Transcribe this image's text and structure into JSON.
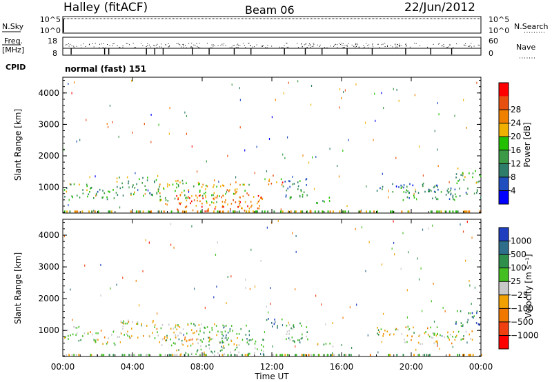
{
  "header": {
    "station": "Halley (fitACF)",
    "beam": "Beam 06",
    "date": "22/Jun/2012"
  },
  "panels": {
    "nsky": {
      "label": "N.Sky",
      "tick_top": "10^5",
      "tick_bottom": "10^0",
      "right_label": "N.Search",
      "right_tick_top": "10^5",
      "right_tick_bottom": "10^0"
    },
    "freq": {
      "label_line1": "Freq.",
      "label_line2": "[MHz]",
      "tick_top": "18",
      "tick_bottom": "8",
      "right_label": "Nave",
      "right_tick_top": "60",
      "right_tick_bottom": "0"
    },
    "cpid": {
      "label": "CPID",
      "value": "normal (fast) 151"
    }
  },
  "chart_data": [
    {
      "type": "heatmap",
      "name": "power",
      "ylabel": "Slant Range [km]",
      "ylim": [
        180,
        4500
      ],
      "yticks": [
        "1000",
        "2000",
        "3000",
        "4000"
      ],
      "colorbar": {
        "label": "Power [dB]",
        "ticks": [
          "4",
          "8",
          "12",
          "16",
          "20",
          "24",
          "28"
        ],
        "colors": [
          "#0000ff",
          "#1f4fbf",
          "#2e7d6a",
          "#3c9a46",
          "#22c000",
          "#f0b000",
          "#f08000",
          "#e85010",
          "#ff0000"
        ]
      },
      "bands": [
        {
          "t0": 0.0,
          "t1": 1.5,
          "r0": 700,
          "r1": 1150,
          "v": 0.45
        },
        {
          "t0": 1.5,
          "t1": 3.0,
          "r0": 600,
          "r1": 1050,
          "v": 0.35
        },
        {
          "t0": 3.0,
          "t1": 5.5,
          "r0": 750,
          "r1": 1350,
          "v": 0.4
        },
        {
          "t0": 5.5,
          "t1": 9.0,
          "r0": 500,
          "r1": 1250,
          "v": 0.55
        },
        {
          "t0": 6.5,
          "t1": 11.5,
          "r0": 250,
          "r1": 800,
          "v": 0.8
        },
        {
          "t0": 9.0,
          "t1": 10.8,
          "r0": 700,
          "r1": 1200,
          "v": 0.65
        },
        {
          "t0": 11.6,
          "t1": 12.6,
          "r0": 1100,
          "r1": 1400,
          "v": 0.75
        },
        {
          "t0": 12.6,
          "t1": 14.2,
          "r0": 650,
          "r1": 1300,
          "v": 0.3
        },
        {
          "t0": 14.5,
          "t1": 15.5,
          "r0": 500,
          "r1": 700,
          "v": 0.35
        },
        {
          "t0": 18.0,
          "t1": 21.5,
          "r0": 850,
          "r1": 1150,
          "v": 0.25
        },
        {
          "t0": 19.5,
          "t1": 22.5,
          "r0": 600,
          "r1": 950,
          "v": 0.35
        },
        {
          "t0": 22.5,
          "t1": 24.0,
          "r0": 1150,
          "r1": 1650,
          "v": 0.4
        },
        {
          "t0": 22.0,
          "t1": 24.0,
          "r0": 700,
          "r1": 1000,
          "v": 0.3
        }
      ]
    },
    {
      "type": "heatmap",
      "name": "velocity",
      "ylabel": "Slant Range [km]",
      "xlabel": "Time UT",
      "ylim": [
        180,
        4500
      ],
      "yticks": [
        "1000",
        "2000",
        "3000",
        "4000"
      ],
      "xticks": [
        "00:00",
        "04:00",
        "08:00",
        "12:00",
        "16:00",
        "20:00",
        "00:00"
      ],
      "colorbar": {
        "label": "Velocity [m s⁻¹]",
        "ticks": [
          "1000",
          "500",
          "100",
          "25",
          "−25",
          "−100",
          "−500",
          "−1000"
        ],
        "colors": [
          "#1f3fbf",
          "#2e6e8a",
          "#2e8f4a",
          "#44bf22",
          "#c8c8c8",
          "#f0a000",
          "#f07800",
          "#f04010",
          "#ff0000"
        ]
      },
      "bands": [
        {
          "t0": 0.0,
          "t1": 1.5,
          "r0": 700,
          "r1": 1150,
          "v": 0.55
        },
        {
          "t0": 1.5,
          "t1": 3.0,
          "r0": 600,
          "r1": 1050,
          "v": 0.45
        },
        {
          "t0": 3.0,
          "t1": 5.5,
          "r0": 750,
          "r1": 1350,
          "v": 0.5
        },
        {
          "t0": 5.5,
          "t1": 9.0,
          "r0": 500,
          "r1": 1250,
          "v": 0.5
        },
        {
          "t0": 6.5,
          "t1": 11.5,
          "r0": 250,
          "r1": 800,
          "v": 0.6
        },
        {
          "t0": 9.0,
          "t1": 10.8,
          "r0": 700,
          "r1": 1200,
          "v": 0.7
        },
        {
          "t0": 11.6,
          "t1": 12.6,
          "r0": 1100,
          "r1": 1400,
          "v": 0.85
        },
        {
          "t0": 12.6,
          "t1": 14.2,
          "r0": 650,
          "r1": 1300,
          "v": 0.65
        },
        {
          "t0": 14.5,
          "t1": 15.5,
          "r0": 500,
          "r1": 700,
          "v": 0.6
        },
        {
          "t0": 18.0,
          "t1": 21.5,
          "r0": 850,
          "r1": 1150,
          "v": 0.5
        },
        {
          "t0": 19.5,
          "t1": 22.5,
          "r0": 600,
          "r1": 950,
          "v": 0.45
        },
        {
          "t0": 22.5,
          "t1": 24.0,
          "r0": 1150,
          "r1": 1650,
          "v": 0.8
        },
        {
          "t0": 22.0,
          "t1": 24.0,
          "r0": 700,
          "r1": 1000,
          "v": 0.5
        }
      ]
    }
  ]
}
